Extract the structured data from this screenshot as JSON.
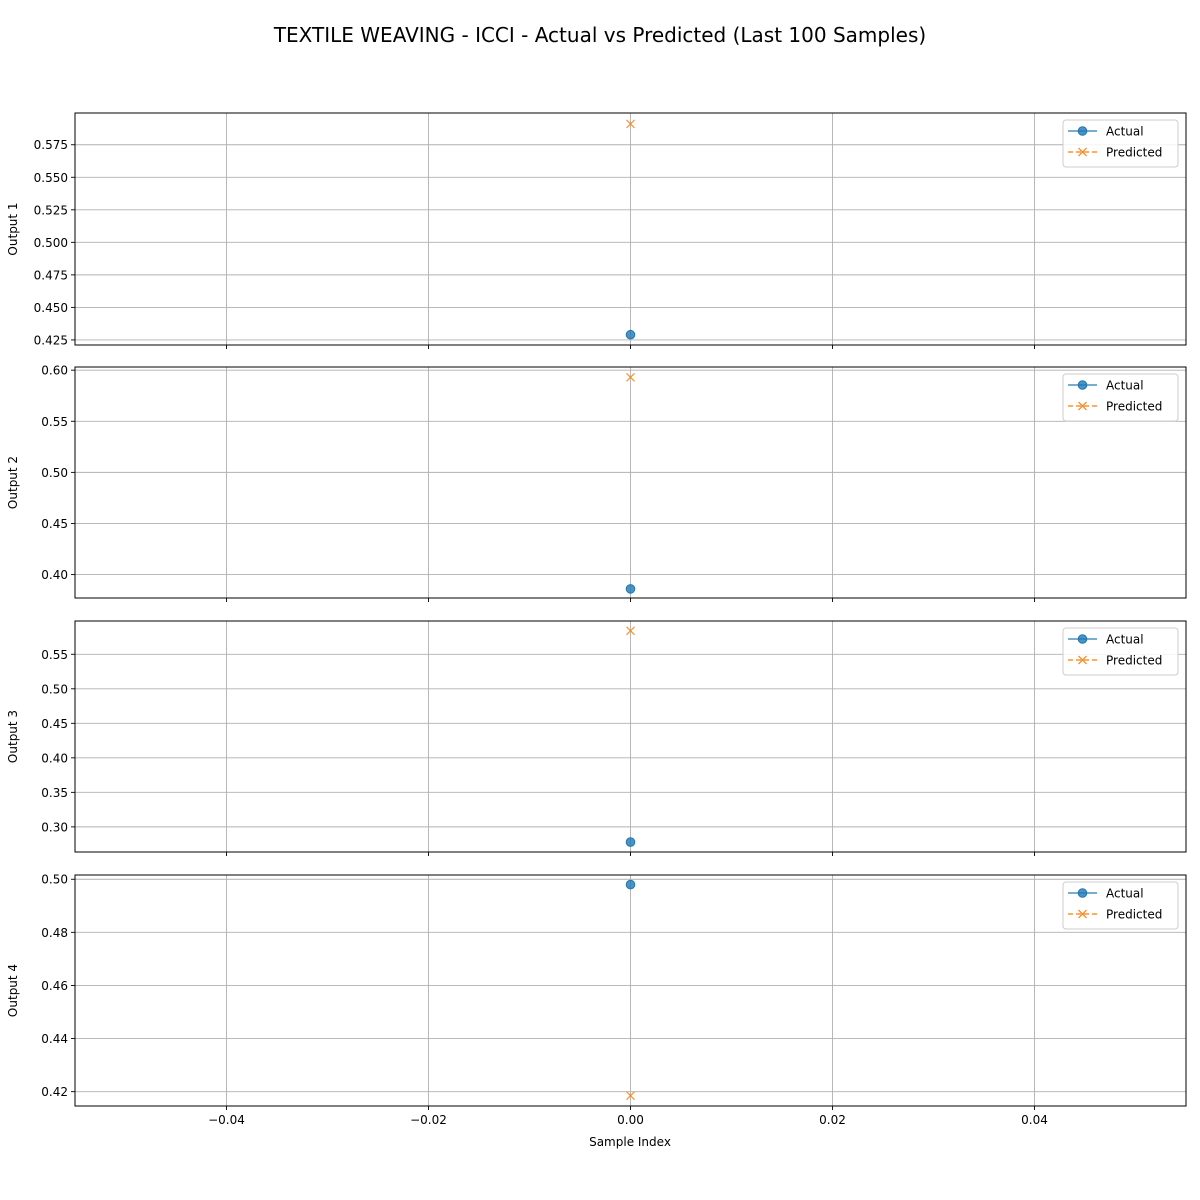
{
  "title": "TEXTILE WEAVING - ICCI - Actual vs Predicted (Last 100 Samples)",
  "xlabel": "Sample Index",
  "colors": {
    "actual": "#1f77b4",
    "predicted": "#ff7f0e",
    "grid": "#b0b0b0"
  },
  "legend": {
    "actual": "Actual",
    "predicted": "Predicted",
    "placement": "upper-right"
  },
  "chart_data": [
    {
      "type": "line",
      "ylabel": "Output 1",
      "xlim": [
        -0.055,
        0.055
      ],
      "ylim": [
        0.4211,
        0.5994
      ],
      "xticks": [
        -0.04,
        -0.02,
        0.0,
        0.02,
        0.04
      ],
      "yticks": [
        0.425,
        0.45,
        0.475,
        0.5,
        0.525,
        0.55,
        0.575
      ],
      "ytick_decimals": 3,
      "grid": true,
      "series": [
        {
          "name": "Actual",
          "x": [
            0
          ],
          "values": [
            0.429
          ]
        },
        {
          "name": "Predicted",
          "x": [
            0
          ],
          "values": [
            0.591
          ]
        }
      ]
    },
    {
      "type": "line",
      "ylabel": "Output 2",
      "xlim": [
        -0.055,
        0.055
      ],
      "ylim": [
        0.3771,
        0.6031
      ],
      "xticks": [
        -0.04,
        -0.02,
        0.0,
        0.02,
        0.04
      ],
      "yticks": [
        0.4,
        0.45,
        0.5,
        0.55,
        0.6
      ],
      "ytick_decimals": 2,
      "grid": true,
      "series": [
        {
          "name": "Actual",
          "x": [
            0
          ],
          "values": [
            0.386
          ]
        },
        {
          "name": "Predicted",
          "x": [
            0
          ],
          "values": [
            0.593
          ]
        }
      ]
    },
    {
      "type": "line",
      "ylabel": "Output 3",
      "xlim": [
        -0.055,
        0.055
      ],
      "ylim": [
        0.2636,
        0.5982
      ],
      "xticks": [
        -0.04,
        -0.02,
        0.0,
        0.02,
        0.04
      ],
      "yticks": [
        0.3,
        0.35,
        0.4,
        0.45,
        0.5,
        0.55
      ],
      "ytick_decimals": 2,
      "grid": true,
      "series": [
        {
          "name": "Actual",
          "x": [
            0
          ],
          "values": [
            0.278
          ]
        },
        {
          "name": "Predicted",
          "x": [
            0
          ],
          "values": [
            0.584
          ]
        }
      ]
    },
    {
      "type": "line",
      "ylabel": "Output 4",
      "xlim": [
        -0.055,
        0.055
      ],
      "ylim": [
        0.4146,
        0.5016
      ],
      "xticks": [
        -0.04,
        -0.02,
        0.0,
        0.02,
        0.04
      ],
      "yticks": [
        0.42,
        0.44,
        0.46,
        0.48,
        0.5
      ],
      "ytick_decimals": 2,
      "grid": true,
      "series": [
        {
          "name": "Actual",
          "x": [
            0
          ],
          "values": [
            0.498
          ]
        },
        {
          "name": "Predicted",
          "x": [
            0
          ],
          "values": [
            0.4185
          ]
        }
      ]
    }
  ]
}
